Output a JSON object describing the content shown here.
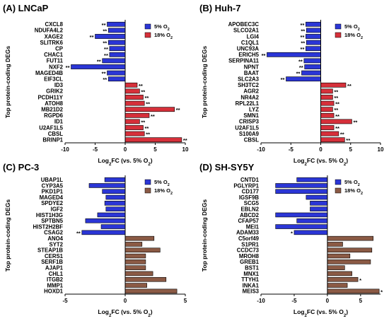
{
  "figure": {
    "ylabel": "Top protein-coding DEGs",
    "xlabel": "Log₂FC (vs. 5% O₂)",
    "legend": [
      "5% O₂",
      "18% O₂"
    ]
  },
  "colors": {
    "neg_fill": "#2b36d6",
    "pos_fill": "#d6303a",
    "pos_fill_alt": "#8b5a45"
  },
  "chart_data": [
    {
      "type": "bar",
      "title": "(A) LNCaP",
      "xlim": [
        -10,
        10
      ],
      "xticks": [
        -10,
        -5,
        0,
        5,
        10
      ],
      "legend_position": "top-right",
      "pos_color": "red",
      "categories": [
        "CXCL8",
        "NDUFA4L2",
        "XAGE2",
        "SLITRK6",
        "CP",
        "CHAC1",
        "FUT11",
        "NXF2",
        "MAGED4B",
        "EIF3CL",
        "ID3",
        "GRIK2",
        "PCDH11Y",
        "ATOH8",
        "MB21D2",
        "RGPD6",
        "ID1",
        "U2AF1L5",
        "CBSL",
        "BRINP1"
      ],
      "values": [
        -3.0,
        -2.8,
        -5.0,
        -2.8,
        -2.6,
        -2.6,
        -3.8,
        -9.0,
        -3.0,
        -2.8,
        2.0,
        2.4,
        3.0,
        3.2,
        8.2,
        4.0,
        2.4,
        3.0,
        3.2,
        9.4
      ],
      "significance": [
        "**",
        "**",
        "**",
        "**",
        "**",
        "**",
        "**",
        "**",
        "**",
        "**",
        "**",
        "**",
        "**",
        "**",
        "**",
        "**",
        "**",
        "**",
        "**",
        "**"
      ]
    },
    {
      "type": "bar",
      "title": "(B) Huh-7",
      "xlim": [
        -10,
        10
      ],
      "xticks": [
        -10,
        -5,
        0,
        5,
        10
      ],
      "legend_position": "top-right",
      "pos_color": "red",
      "categories": [
        "APOBEC3C",
        "SLCO2A1",
        "LGI4",
        "C1QL1",
        "UNC93A",
        "ERICH5",
        "SERPINA11",
        "NPNT",
        "BAAT",
        "SLC2A3",
        "SH3TC2",
        "AGR2",
        "NR4A2",
        "RPL22L1",
        "LYZ",
        "SMN1",
        "CRISP3",
        "U2AF1L5",
        "S100A9",
        "CBSL"
      ],
      "values": [
        -2.5,
        -2.4,
        -2.5,
        -2.4,
        -2.5,
        -9.0,
        -2.8,
        -2.7,
        -3.2,
        -5.8,
        4.2,
        2.0,
        2.0,
        2.2,
        2.0,
        2.2,
        5.2,
        2.2,
        3.0,
        4.0
      ],
      "significance": [
        "**",
        "**",
        "**",
        "**",
        "**",
        "**",
        "**",
        "**",
        "**",
        "**",
        "**",
        "**",
        "**",
        "**",
        "**",
        "**",
        "**",
        "**",
        "**",
        "**"
      ]
    },
    {
      "type": "bar",
      "title": "(C) PC-3",
      "xlim": [
        -5,
        5
      ],
      "xticks": [
        -5,
        0,
        5
      ],
      "legend_position": "top-right",
      "pos_color": "brown",
      "categories": [
        "UBAP1L",
        "CYP3A5",
        "PKD1P1",
        "MAGED4",
        "SPDYE2",
        "IGF2",
        "HIST1H3G",
        "SPTBN5",
        "HIST2H2BF",
        "CSAG2",
        "ANO4",
        "SYT2",
        "STEAP1B",
        "CERS1",
        "SERF1B",
        "AJAP1",
        "CHL1",
        "ITGB2",
        "MMP1",
        "HOXD1"
      ],
      "values": [
        -1.7,
        -3.0,
        -1.9,
        -1.6,
        -1.7,
        -1.6,
        -2.3,
        -3.3,
        -2.0,
        -3.6,
        2.4,
        1.4,
        2.9,
        1.7,
        1.7,
        1.7,
        2.3,
        3.4,
        1.8,
        4.3
      ],
      "significance": [
        "",
        "",
        "",
        "",
        "",
        "",
        "",
        "",
        "",
        "**",
        "",
        "",
        "",
        "",
        "",
        "",
        "",
        "",
        "",
        ""
      ]
    },
    {
      "type": "bar",
      "title": "(D) SH-SY5Y",
      "xlim": [
        -10,
        8
      ],
      "xticks": [
        -10,
        -5,
        0,
        5
      ],
      "legend_position": "top-right",
      "pos_color": "brown",
      "categories": [
        "CNTD1",
        "PGLYRP1",
        "CD177",
        "IGSF9B",
        "SCG5",
        "EBLN2",
        "ABCD2",
        "CFAP57",
        "MEI1",
        "ADAM33",
        "C5orf49",
        "S1PR1",
        "CCDC73",
        "MROH8",
        "GREB1",
        "BST1",
        "MNX1",
        "TTYH1",
        "INKA1",
        "MEIS3"
      ],
      "values": [
        -4.6,
        -7.8,
        -7.8,
        -3.2,
        -2.6,
        -2.6,
        -7.8,
        -4.6,
        -7.8,
        -5.0,
        6.9,
        2.3,
        6.7,
        3.4,
        6.5,
        2.6,
        3.7,
        4.6,
        3.0,
        7.8
      ],
      "significance": [
        "",
        "",
        "",
        "",
        "",
        "",
        "",
        "",
        "",
        "*",
        "",
        "",
        "",
        "",
        "",
        "",
        "",
        "*",
        "",
        "*"
      ]
    }
  ]
}
